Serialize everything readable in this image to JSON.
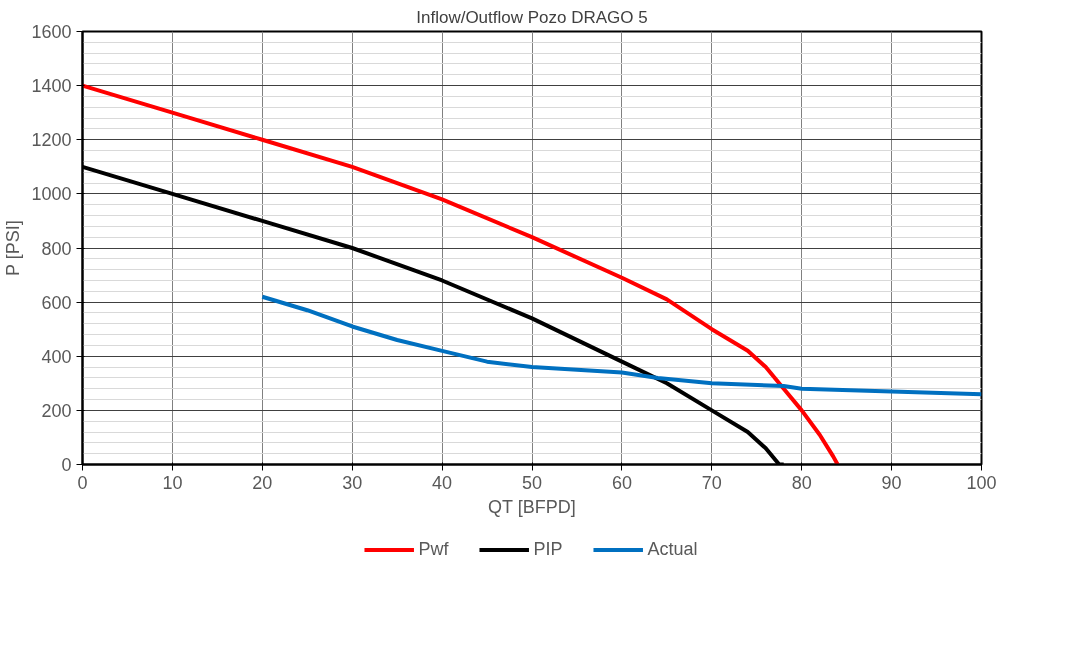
{
  "chart_data": {
    "type": "line",
    "title": "Inflow/Outflow Pozo DRAGO 5",
    "xlabel": "QT [BFPD]",
    "ylabel": "P [PSI]",
    "xlim": [
      0,
      100
    ],
    "ylim": [
      0,
      1600
    ],
    "xticks": [
      0,
      10,
      20,
      30,
      40,
      50,
      60,
      70,
      80,
      90,
      100
    ],
    "yticks": [
      0,
      200,
      400,
      600,
      800,
      1000,
      1200,
      1400,
      1600
    ],
    "grid": true,
    "legend": "bottom",
    "marker": "none",
    "line_style": "solid",
    "series": [
      {
        "name": "Pwf",
        "color": "#ff0000",
        "x": [
          0,
          10,
          20,
          30,
          40,
          50,
          60,
          65,
          70,
          74,
          76,
          78,
          80,
          82,
          83.5,
          84
        ],
        "values": [
          1400,
          1300,
          1200,
          1100,
          980,
          840,
          690,
          610,
          500,
          420,
          360,
          280,
          200,
          110,
          30,
          0
        ]
      },
      {
        "name": "PIP",
        "color": "#000000",
        "x": [
          0,
          10,
          20,
          30,
          40,
          50,
          60,
          65,
          70,
          74,
          76,
          77.5,
          78
        ],
        "values": [
          1100,
          1000,
          900,
          800,
          680,
          540,
          380,
          300,
          200,
          120,
          60,
          0,
          0
        ]
      },
      {
        "name": "Actual",
        "color": "#0070c0",
        "x": [
          20,
          25,
          30,
          35,
          40,
          45,
          50,
          60,
          64,
          70,
          78,
          80,
          90,
          100
        ],
        "values": [
          620,
          570,
          510,
          460,
          420,
          380,
          360,
          340,
          320,
          300,
          290,
          280,
          270,
          260
        ]
      }
    ]
  }
}
